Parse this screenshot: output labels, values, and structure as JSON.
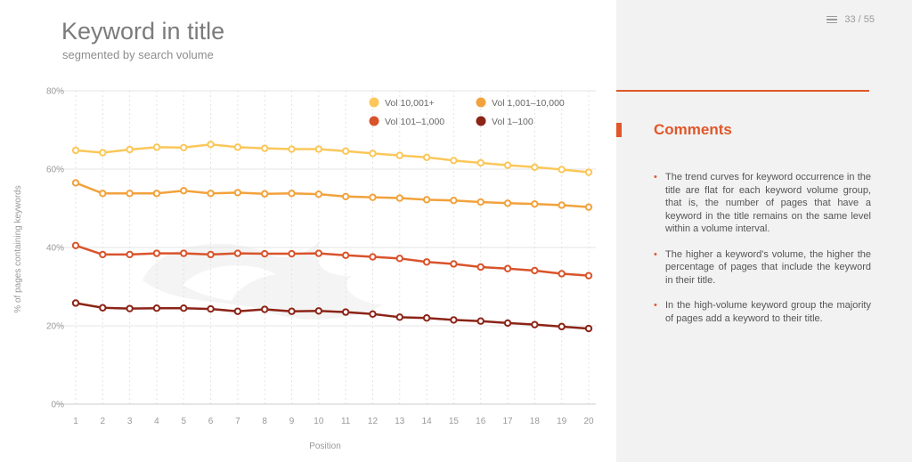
{
  "header": {
    "title": "Keyword in title",
    "subtitle": "segmented by search volume",
    "page_counter": "33 / 55"
  },
  "comments": {
    "title": "Comments",
    "items": [
      "The trend curves for keyword occurrence in the title are flat for each keyword volume group, that is, the number of pages that have a keyword in the title remains on the same level within a volume interval.",
      "The higher a keyword's volume, the higher the percentage of pages that include the keyword in their title.",
      "In the high-volume keyword group the majority of pages add a keyword to their title."
    ]
  },
  "colors": {
    "accent": "#e0572a",
    "right_panel_bg": "#f2f2f2"
  },
  "chart_data": {
    "type": "line",
    "xlabel": "Position",
    "ylabel": "% of pages containing keywords",
    "x": [
      1,
      2,
      3,
      4,
      5,
      6,
      7,
      8,
      9,
      10,
      11,
      12,
      13,
      14,
      15,
      16,
      17,
      18,
      19,
      20
    ],
    "ylim": [
      0,
      80
    ],
    "yticks": [
      0,
      20,
      40,
      60,
      80
    ],
    "ytick_labels": [
      "0%",
      "20%",
      "40%",
      "60%",
      "80%"
    ],
    "grid": "vertical dashed",
    "legend_position": "top-right",
    "series": [
      {
        "name": "Vol 10,001+",
        "color": "#fbc75a",
        "values": [
          64.8,
          64.2,
          65.0,
          65.6,
          65.5,
          66.3,
          65.6,
          65.3,
          65.1,
          65.1,
          64.6,
          64.0,
          63.5,
          63.0,
          62.2,
          61.6,
          61.0,
          60.5,
          59.9,
          59.2
        ]
      },
      {
        "name": "Vol 1,001–10,000",
        "color": "#f2a23c",
        "values": [
          56.5,
          53.8,
          53.8,
          53.8,
          54.5,
          53.8,
          54.0,
          53.7,
          53.8,
          53.6,
          53.0,
          52.8,
          52.6,
          52.2,
          52.0,
          51.6,
          51.3,
          51.1,
          50.8,
          50.3
        ]
      },
      {
        "name": "Vol 101–1,000",
        "color": "#d9532b",
        "values": [
          40.5,
          38.2,
          38.2,
          38.5,
          38.5,
          38.2,
          38.5,
          38.4,
          38.4,
          38.5,
          38.0,
          37.6,
          37.2,
          36.3,
          35.8,
          35.0,
          34.6,
          34.1,
          33.3,
          32.8
        ]
      },
      {
        "name": "Vol 1–100",
        "color": "#8c2417",
        "values": [
          25.8,
          24.6,
          24.4,
          24.5,
          24.5,
          24.3,
          23.7,
          24.2,
          23.7,
          23.8,
          23.5,
          23.0,
          22.2,
          22.0,
          21.5,
          21.2,
          20.7,
          20.3,
          19.8,
          19.3
        ]
      }
    ]
  }
}
